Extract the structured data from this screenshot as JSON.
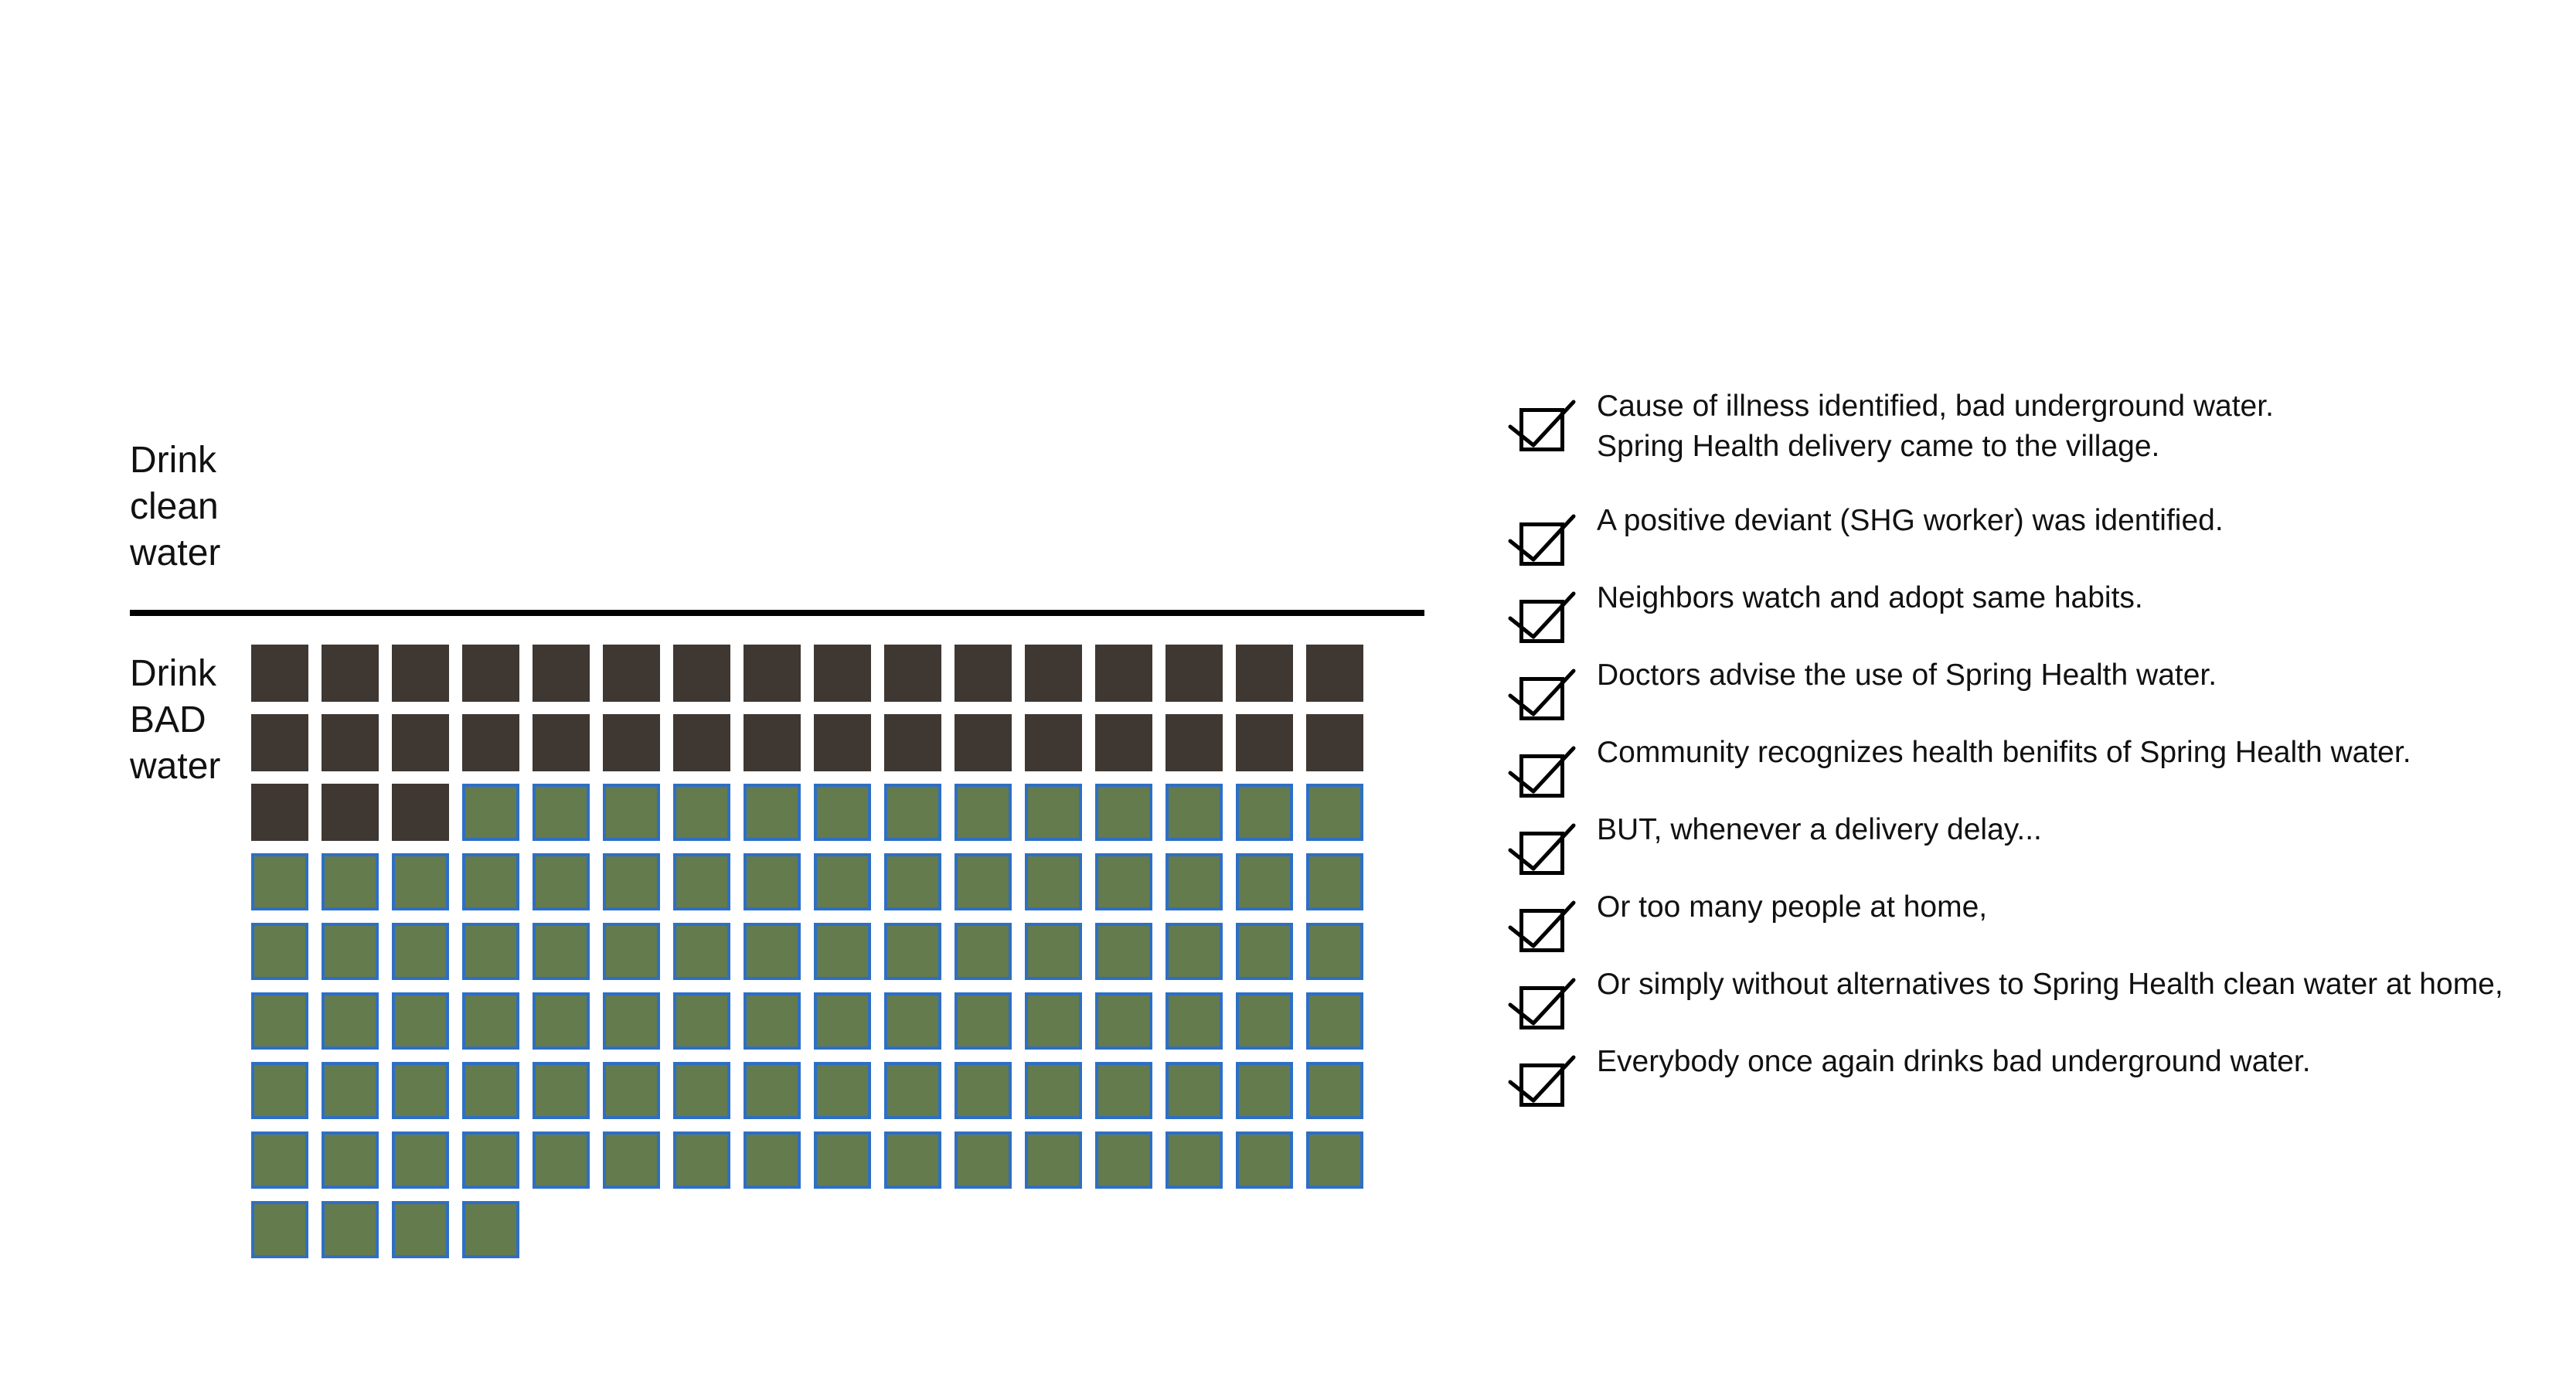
{
  "groups": {
    "clean": [
      "Drink",
      "clean",
      "water"
    ],
    "bad": [
      "Drink",
      "BAD",
      "water"
    ]
  },
  "chart_data": {
    "type": "waffle",
    "columns": 16,
    "series": [
      {
        "name": "Drink BAD water",
        "count": 35,
        "color": "#3f3732"
      },
      {
        "name": "Drink clean water",
        "count": 97,
        "color": "#647b4e",
        "border": "#2e6fc4"
      }
    ],
    "total": 132
  },
  "checklist": [
    {
      "lines": [
        "Cause of illness identified, bad underground water.",
        "Spring Health delivery came to the village."
      ]
    },
    {
      "lines": [
        "A positive deviant (SHG worker) was identified."
      ]
    },
    {
      "lines": [
        "Neighbors watch and adopt same habits."
      ]
    },
    {
      "lines": [
        "Doctors advise the use of Spring Health water."
      ]
    },
    {
      "lines": [
        "Community recognizes health benifits of Spring Health water."
      ]
    },
    {
      "lines": [
        "BUT, whenever a delivery delay..."
      ]
    },
    {
      "lines": [
        "Or too many people at home,"
      ]
    },
    {
      "lines": [
        "Or simply without alternatives to Spring Health clean water at home,"
      ]
    },
    {
      "lines": [
        "Everybody once again drinks bad underground water."
      ]
    }
  ]
}
